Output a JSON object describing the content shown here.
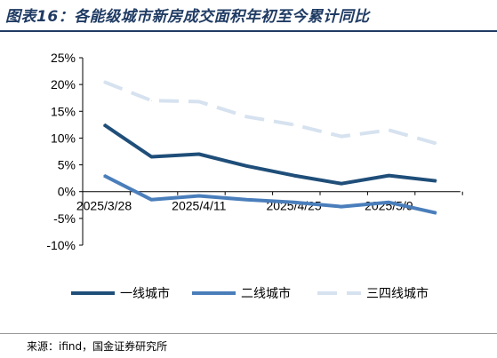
{
  "header": {
    "title": "图表16：各能级城市新房成交面积年初至今累计同比"
  },
  "source": "来源：ifind，国金证券研究所",
  "chart_data": {
    "type": "line",
    "title": "图表16：各能级城市新房成交面积年初至今累计同比",
    "xlabel": "",
    "ylabel": "",
    "ylim": [
      -10,
      25
    ],
    "yticks": [
      -10,
      -5,
      0,
      5,
      10,
      15,
      20,
      25
    ],
    "ytick_labels": [
      "-10%",
      "-5%",
      "0%",
      "5%",
      "10%",
      "15%",
      "20%",
      "25%"
    ],
    "x": [
      "2025/3/28",
      "2025/4/4",
      "2025/4/11",
      "2025/4/18",
      "2025/4/25",
      "2025/5/2",
      "2025/5/9",
      "2025/5/16"
    ],
    "xtick_labels": [
      "2025/3/28",
      "2025/4/11",
      "2025/4/25",
      "2025/5/9"
    ],
    "grid": false,
    "legend_position": "bottom",
    "series": [
      {
        "name": "一线城市",
        "color": "#1f4e79",
        "dash": "solid",
        "values": [
          12.5,
          6.5,
          7.0,
          4.8,
          3.0,
          1.5,
          3.0,
          2.0
        ]
      },
      {
        "name": "二线城市",
        "color": "#4a7ebb",
        "dash": "solid",
        "values": [
          3.0,
          -1.5,
          -0.8,
          -1.5,
          -2.0,
          -2.8,
          -2.0,
          -4.0
        ]
      },
      {
        "name": "三四线城市",
        "color": "#d6e2ef",
        "dash": "dashed",
        "values": [
          20.5,
          17.0,
          16.8,
          14.0,
          12.5,
          10.3,
          11.5,
          9.0
        ]
      }
    ]
  }
}
